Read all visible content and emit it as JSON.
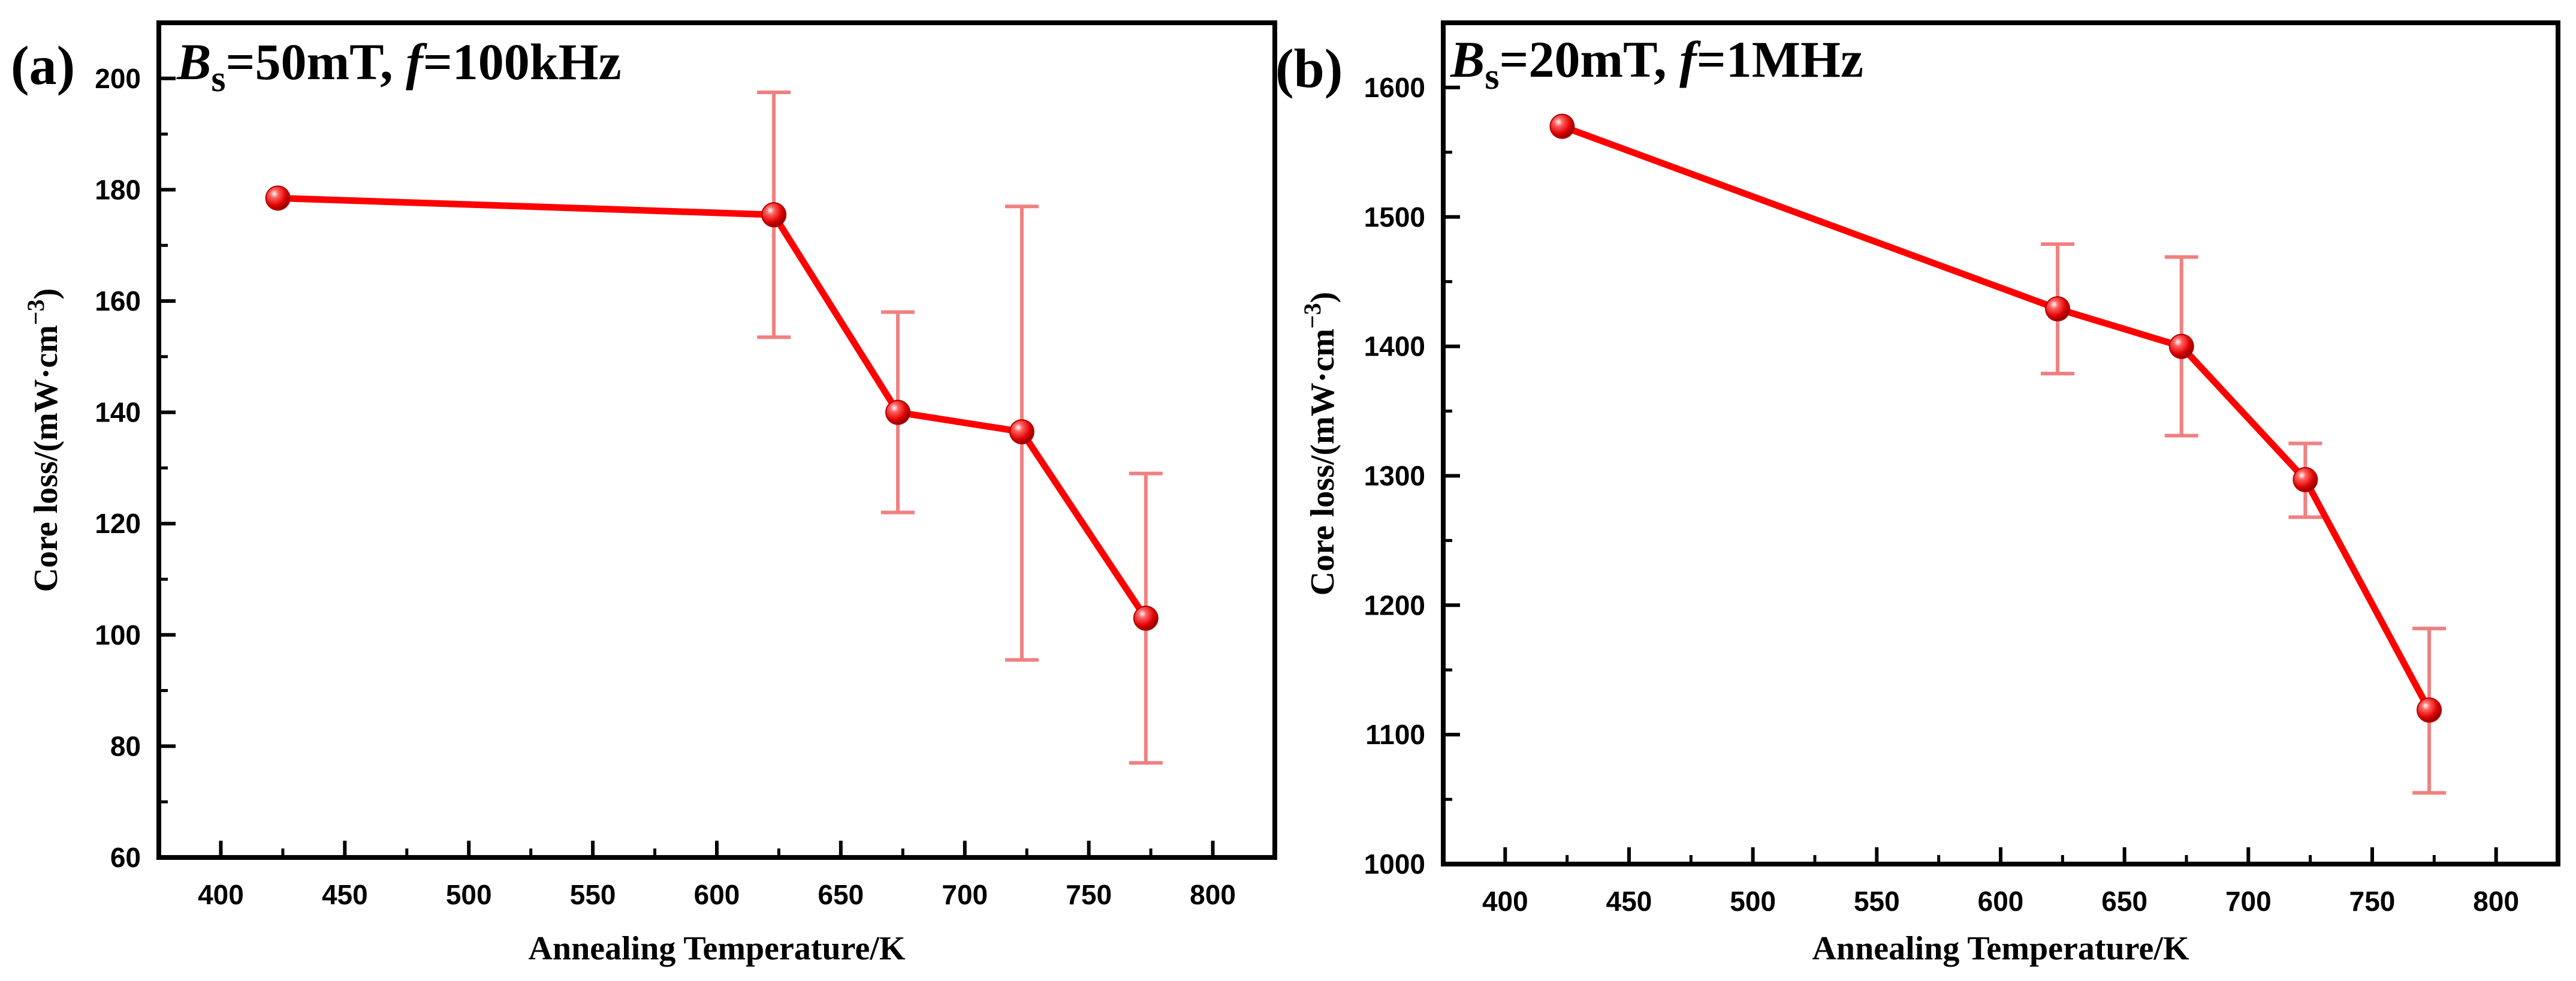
{
  "figure": {
    "panels": [
      {
        "label": "(a)",
        "annotation": {
          "B": "B",
          "sub": "s",
          "cond": "=50mT, ",
          "f": "f",
          "freq": "=100kHz"
        }
      },
      {
        "label": "(b)",
        "annotation": {
          "B": "B",
          "sub": "s",
          "cond": "=20mT, ",
          "f": "f",
          "freq": "=1MHz"
        }
      }
    ]
  },
  "colors": {
    "line": "#ff0000",
    "error_bar": "#f08080",
    "marker": "#e00000",
    "axis": "#000000"
  },
  "chart_data": [
    {
      "type": "line",
      "title": "",
      "panel_label": "(a)",
      "xlabel": "Annealing Temperature/K",
      "ylabel": "Core loss/(mW·cm⁻³)",
      "ylabel_parts": {
        "main": "Core loss/(mW·cm",
        "sup": "−3",
        "end": ")"
      },
      "xlim": [
        375,
        825
      ],
      "ylim": [
        60,
        210
      ],
      "xticks": [
        400,
        450,
        500,
        550,
        600,
        650,
        700,
        750,
        800
      ],
      "yticks": [
        60,
        80,
        100,
        120,
        140,
        160,
        180,
        200
      ],
      "x": [
        423,
        623,
        673,
        723,
        773
      ],
      "y": [
        178.5,
        175.5,
        140,
        136.5,
        103
      ],
      "error_low": [
        null,
        153.5,
        122,
        95.5,
        77
      ],
      "error_high": [
        null,
        197.5,
        158,
        177,
        129
      ]
    },
    {
      "type": "line",
      "title": "",
      "panel_label": "(b)",
      "xlabel": "Annealing Temperature/K",
      "ylabel": "Core loss/(mW·cm⁻³)",
      "ylabel_parts": {
        "main": "Core loss/(mW·cm",
        "sup": "−3",
        "end": ")"
      },
      "xlim": [
        375,
        825
      ],
      "ylim": [
        1000,
        1650
      ],
      "xticks": [
        400,
        450,
        500,
        550,
        600,
        650,
        700,
        750,
        800
      ],
      "yticks": [
        1000,
        1100,
        1200,
        1300,
        1400,
        1500,
        1600
      ],
      "x": [
        423,
        623,
        673,
        723,
        773
      ],
      "y": [
        1570,
        1429,
        1400,
        1297,
        1119
      ],
      "error_low": [
        null,
        1379,
        1331,
        1268,
        1055
      ],
      "error_high": [
        null,
        1479,
        1469,
        1325,
        1182
      ]
    }
  ]
}
